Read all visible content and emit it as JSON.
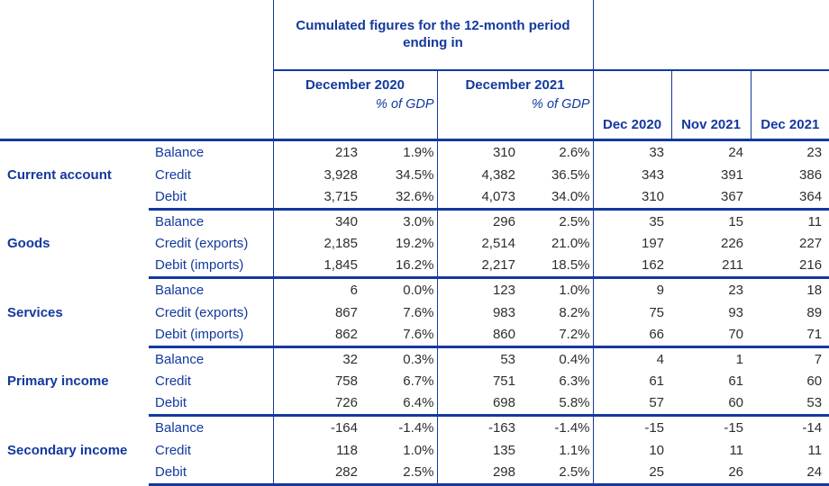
{
  "colors": {
    "text_blue": "#13399e",
    "border_blue": "#13399e",
    "num_color": "#2e2e2e"
  },
  "chart_data": {
    "type": "table",
    "title": "Cumulated figures for the 12-month period ending in",
    "period_headers": [
      {
        "label": "December 2020",
        "sublabel": "% of GDP"
      },
      {
        "label": "December 2021",
        "sublabel": "% of GDP"
      }
    ],
    "month_headers": [
      "Dec 2020",
      "Nov 2021",
      "Dec 2021"
    ],
    "value_columns": [
      "December 2020 amount",
      "December 2020 % of GDP",
      "December 2021 amount",
      "December 2021 % of GDP",
      "Dec 2020",
      "Nov 2021",
      "Dec 2021"
    ],
    "groups": [
      {
        "name": "Current account",
        "rows": [
          {
            "label": "Balance",
            "values": [
              "213",
              "1.9%",
              "310",
              "2.6%",
              "33",
              "24",
              "23"
            ]
          },
          {
            "label": "Credit",
            "values": [
              "3,928",
              "34.5%",
              "4,382",
              "36.5%",
              "343",
              "391",
              "386"
            ]
          },
          {
            "label": "Debit",
            "values": [
              "3,715",
              "32.6%",
              "4,073",
              "34.0%",
              "310",
              "367",
              "364"
            ]
          }
        ]
      },
      {
        "name": "Goods",
        "rows": [
          {
            "label": "Balance",
            "values": [
              "340",
              "3.0%",
              "296",
              "2.5%",
              "35",
              "15",
              "11"
            ]
          },
          {
            "label": "Credit (exports)",
            "values": [
              "2,185",
              "19.2%",
              "2,514",
              "21.0%",
              "197",
              "226",
              "227"
            ]
          },
          {
            "label": "Debit (imports)",
            "values": [
              "1,845",
              "16.2%",
              "2,217",
              "18.5%",
              "162",
              "211",
              "216"
            ]
          }
        ]
      },
      {
        "name": "Services",
        "rows": [
          {
            "label": "Balance",
            "values": [
              "6",
              "0.0%",
              "123",
              "1.0%",
              "9",
              "23",
              "18"
            ]
          },
          {
            "label": "Credit (exports)",
            "values": [
              "867",
              "7.6%",
              "983",
              "8.2%",
              "75",
              "93",
              "89"
            ]
          },
          {
            "label": "Debit (imports)",
            "values": [
              "862",
              "7.6%",
              "860",
              "7.2%",
              "66",
              "70",
              "71"
            ]
          }
        ]
      },
      {
        "name": "Primary income",
        "rows": [
          {
            "label": "Balance",
            "values": [
              "32",
              "0.3%",
              "53",
              "0.4%",
              "4",
              "1",
              "7"
            ]
          },
          {
            "label": "Credit",
            "values": [
              "758",
              "6.7%",
              "751",
              "6.3%",
              "61",
              "61",
              "60"
            ]
          },
          {
            "label": "Debit",
            "values": [
              "726",
              "6.4%",
              "698",
              "5.8%",
              "57",
              "60",
              "53"
            ]
          }
        ]
      },
      {
        "name": "Secondary income",
        "rows": [
          {
            "label": "Balance",
            "values": [
              "-164",
              "-1.4%",
              "-163",
              "-1.4%",
              "-15",
              "-15",
              "-14"
            ]
          },
          {
            "label": "Credit",
            "values": [
              "118",
              "1.0%",
              "135",
              "1.1%",
              "10",
              "11",
              "11"
            ]
          },
          {
            "label": "Debit",
            "values": [
              "282",
              "2.5%",
              "298",
              "2.5%",
              "25",
              "26",
              "24"
            ]
          }
        ]
      }
    ]
  }
}
